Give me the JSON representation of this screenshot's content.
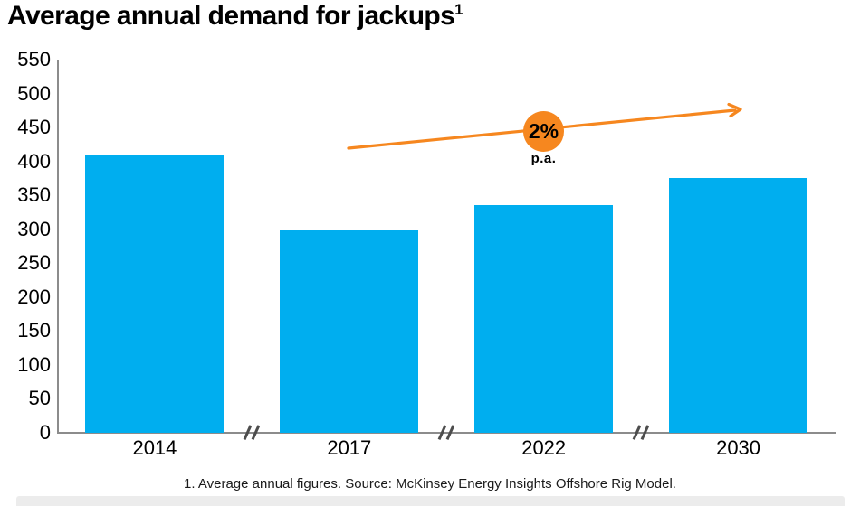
{
  "title": {
    "text": "Average annual demand for jackups",
    "superscript": "1"
  },
  "footnote": "1. Average annual figures. Source: McKinsey Energy Insights Offshore Rig Model.",
  "colors": {
    "bar": "#00AEEF",
    "accent_orange": "#F6871F",
    "axis_line": "#8C8C8C",
    "break_mark": "#4D4D4D",
    "text": "#000000",
    "footnote_text": "#1A1A1A",
    "bottom_strip": "#ECECEC"
  },
  "chart_data": {
    "type": "bar",
    "title": "Average annual demand for jackups",
    "categories": [
      "2014",
      "2017",
      "2022",
      "2030"
    ],
    "values": [
      410,
      300,
      335,
      375
    ],
    "xlabel": "",
    "ylabel": "",
    "ylim": [
      0,
      550
    ],
    "y_ticks": [
      0,
      50,
      100,
      150,
      200,
      250,
      300,
      350,
      400,
      450,
      500,
      550
    ],
    "grid": false,
    "legend": false,
    "bar_color": "#00AEEF",
    "x_axis_breaks": true,
    "annotation": {
      "label": "2%",
      "sublabel": "p.a.",
      "shape": "orange circle on rising arrow"
    }
  }
}
